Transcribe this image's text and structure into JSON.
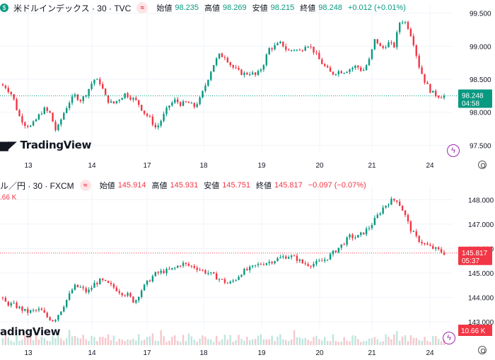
{
  "top": {
    "symbol": "米ドルインデックス · 30 · TVC",
    "o_label": "始値",
    "o": "98.235",
    "h_label": "高値",
    "h": "98.269",
    "l_label": "安値",
    "l": "98.215",
    "c_label": "終値",
    "c": "98.248",
    "chg": "+0.012 (+0.01%)",
    "last_price": "98.248",
    "countdown": "04:58",
    "logo": "TradingView",
    "colors": {
      "up": "#089981",
      "down": "#f23645"
    }
  },
  "bottom": {
    "symbol": "ル／円 · 30 · FXCM",
    "o_label": "始値",
    "o": "145.914",
    "h_label": "高値",
    "h": "145.931",
    "l_label": "安値",
    "l": "145.751",
    "c_label": "終値",
    "c": "145.817",
    "chg": "−0.097 (−0.07%)",
    "volume_label": ".66 K",
    "last_price": "145.817",
    "countdown": "05:37",
    "volume_tag": "10.66 K",
    "logo": "adingView"
  },
  "x_ticks": [
    "13",
    "14",
    "17",
    "18",
    "19",
    "20",
    "21",
    "24"
  ],
  "icons": {
    "badge": "approx-icon",
    "bolt": "lightning-icon",
    "settings": "gear-icon"
  },
  "chart_data": [
    {
      "type": "candlestick",
      "title": "米ドルインデックス · 30 · TVC",
      "y_ticks": [
        "99.500",
        "99.000",
        "98.500",
        "98.000",
        "97.500"
      ],
      "ylim": [
        97.45,
        99.55
      ],
      "x_tick_labels": [
        "13",
        "14",
        "17",
        "18",
        "19",
        "20",
        "21",
        "24"
      ],
      "last": 98.248,
      "close_path": [
        [
          0,
          98.42
        ],
        [
          2,
          98.38
        ],
        [
          4,
          98.25
        ],
        [
          6,
          97.95
        ],
        [
          8,
          97.82
        ],
        [
          10,
          97.78
        ],
        [
          12,
          97.92
        ],
        [
          14,
          98.05
        ],
        [
          16,
          97.98
        ],
        [
          18,
          97.7
        ],
        [
          20,
          97.95
        ],
        [
          22,
          98.15
        ],
        [
          24,
          98.25
        ],
        [
          26,
          98.18
        ],
        [
          28,
          98.32
        ],
        [
          30,
          98.5
        ],
        [
          32,
          98.45
        ],
        [
          34,
          98.2
        ],
        [
          36,
          98.12
        ],
        [
          38,
          98.2
        ],
        [
          40,
          98.28
        ],
        [
          42,
          98.22
        ],
        [
          44,
          98.15
        ],
        [
          46,
          98.0
        ],
        [
          48,
          97.9
        ],
        [
          50,
          97.75
        ],
        [
          52,
          97.92
        ],
        [
          54,
          98.1
        ],
        [
          56,
          98.18
        ],
        [
          58,
          98.12
        ],
        [
          60,
          98.15
        ],
        [
          62,
          98.08
        ],
        [
          64,
          98.2
        ],
        [
          66,
          98.45
        ],
        [
          68,
          98.7
        ],
        [
          70,
          98.86
        ],
        [
          72,
          98.85
        ],
        [
          74,
          98.7
        ],
        [
          76,
          98.62
        ],
        [
          78,
          98.58
        ],
        [
          80,
          98.6
        ],
        [
          82,
          98.55
        ],
        [
          84,
          98.7
        ],
        [
          86,
          98.96
        ],
        [
          88,
          99.0
        ],
        [
          90,
          99.05
        ],
        [
          92,
          98.92
        ],
        [
          94,
          98.96
        ],
        [
          96,
          98.92
        ],
        [
          98,
          99.05
        ],
        [
          100,
          98.95
        ],
        [
          102,
          98.8
        ],
        [
          104,
          98.68
        ],
        [
          106,
          98.58
        ],
        [
          108,
          98.62
        ],
        [
          110,
          98.62
        ],
        [
          112,
          98.66
        ],
        [
          114,
          98.7
        ],
        [
          116,
          98.62
        ],
        [
          118,
          98.78
        ],
        [
          120,
          99.12
        ],
        [
          122,
          98.95
        ],
        [
          124,
          99.05
        ],
        [
          126,
          99.0
        ],
        [
          128,
          99.4
        ],
        [
          130,
          99.35
        ],
        [
          132,
          99.1
        ],
        [
          134,
          98.7
        ],
        [
          136,
          98.45
        ],
        [
          138,
          98.3
        ],
        [
          140,
          98.25
        ],
        [
          142,
          98.248
        ]
      ]
    },
    {
      "type": "candlestick",
      "title": "ル／円 · 30 · FXCM",
      "y_ticks": [
        "148.000",
        "147.000",
        "146.000",
        "145.000",
        "144.000",
        "143.000"
      ],
      "ylim": [
        142.8,
        148.3
      ],
      "x_tick_labels": [
        "13",
        "14",
        "17",
        "18",
        "19",
        "20",
        "21",
        "24"
      ],
      "last": 145.817,
      "close_path": [
        [
          0,
          144.0
        ],
        [
          2,
          143.75
        ],
        [
          4,
          143.7
        ],
        [
          6,
          143.55
        ],
        [
          8,
          143.4
        ],
        [
          10,
          143.45
        ],
        [
          12,
          143.5
        ],
        [
          14,
          143.2
        ],
        [
          16,
          143.05
        ],
        [
          18,
          143.45
        ],
        [
          20,
          143.95
        ],
        [
          22,
          144.45
        ],
        [
          24,
          144.4
        ],
        [
          26,
          144.2
        ],
        [
          28,
          144.55
        ],
        [
          30,
          144.7
        ],
        [
          32,
          144.55
        ],
        [
          34,
          144.4
        ],
        [
          36,
          144.2
        ],
        [
          38,
          144.1
        ],
        [
          40,
          143.8
        ],
        [
          42,
          144.3
        ],
        [
          44,
          144.65
        ],
        [
          46,
          144.95
        ],
        [
          48,
          145.05
        ],
        [
          50,
          145.1
        ],
        [
          52,
          145.2
        ],
        [
          54,
          145.4
        ],
        [
          56,
          145.3
        ],
        [
          58,
          145.25
        ],
        [
          60,
          145.1
        ],
        [
          62,
          145.0
        ],
        [
          64,
          144.85
        ],
        [
          66,
          144.7
        ],
        [
          68,
          144.55
        ],
        [
          70,
          144.75
        ],
        [
          72,
          145.05
        ],
        [
          74,
          145.15
        ],
        [
          76,
          145.3
        ],
        [
          78,
          145.4
        ],
        [
          80,
          145.45
        ],
        [
          82,
          145.55
        ],
        [
          84,
          145.65
        ],
        [
          86,
          145.7
        ],
        [
          88,
          145.6
        ],
        [
          90,
          145.4
        ],
        [
          92,
          145.35
        ],
        [
          94,
          145.4
        ],
        [
          96,
          145.5
        ],
        [
          98,
          145.7
        ],
        [
          100,
          145.95
        ],
        [
          102,
          146.2
        ],
        [
          104,
          146.5
        ],
        [
          106,
          146.45
        ],
        [
          108,
          146.65
        ],
        [
          110,
          146.9
        ],
        [
          112,
          147.3
        ],
        [
          114,
          147.7
        ],
        [
          116,
          147.95
        ],
        [
          118,
          148.0
        ],
        [
          120,
          147.5
        ],
        [
          122,
          146.8
        ],
        [
          124,
          146.4
        ],
        [
          126,
          146.2
        ],
        [
          128,
          146.05
        ],
        [
          130,
          145.95
        ],
        [
          132,
          145.817
        ]
      ],
      "volume_ylim": [
        0,
        12
      ],
      "volume_last": 10.66
    }
  ]
}
